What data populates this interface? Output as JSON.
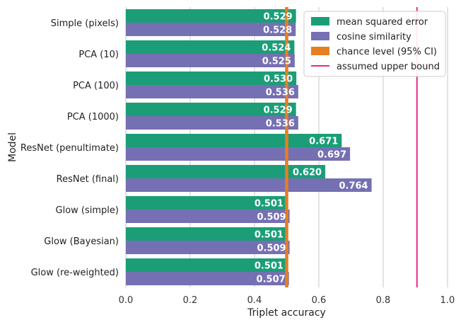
{
  "chart_data": {
    "type": "bar",
    "orientation": "horizontal",
    "categories": [
      "Simple (pixels)",
      "PCA (10)",
      "PCA (100)",
      "PCA (1000)",
      "ResNet (penultimate)",
      "ResNet (final)",
      "Glow (simple)",
      "Glow (Bayesian)",
      "Glow (re-weighted)"
    ],
    "series": [
      {
        "name": "mean squared error",
        "color": "#1b9e77",
        "values": [
          0.529,
          0.524,
          0.53,
          0.529,
          0.671,
          0.62,
          0.501,
          0.501,
          0.501
        ],
        "labels": [
          "0.529",
          "0.524",
          "0.530",
          "0.529",
          "0.671",
          "0.620",
          "0.501",
          "0.501",
          "0.501"
        ]
      },
      {
        "name": "cosine similarity",
        "color": "#7570b3",
        "values": [
          0.528,
          0.525,
          0.536,
          0.536,
          0.697,
          0.764,
          0.509,
          0.509,
          0.507
        ],
        "labels": [
          "0.528",
          "0.525",
          "0.536",
          "0.536",
          "0.697",
          "0.764",
          "0.509",
          "0.509",
          "0.507"
        ]
      }
    ],
    "reference_lines": [
      {
        "name": "chance level (95% CI)",
        "color": "#e67e22",
        "x_low": 0.495,
        "x_high": 0.505,
        "style": "band"
      },
      {
        "name": "assumed upper bound",
        "color": "#e7298a",
        "x": 0.905,
        "style": "line"
      }
    ],
    "xlabel": "Triplet accuracy",
    "ylabel": "Model",
    "xlim": [
      0.0,
      1.0
    ],
    "xticks": [
      0.0,
      0.2,
      0.4,
      0.6,
      0.8,
      1.0
    ],
    "xtick_labels": [
      "0.0",
      "0.2",
      "0.4",
      "0.6",
      "0.8",
      "1.0"
    ],
    "grid": "vertical",
    "legend_position": "top-right"
  }
}
